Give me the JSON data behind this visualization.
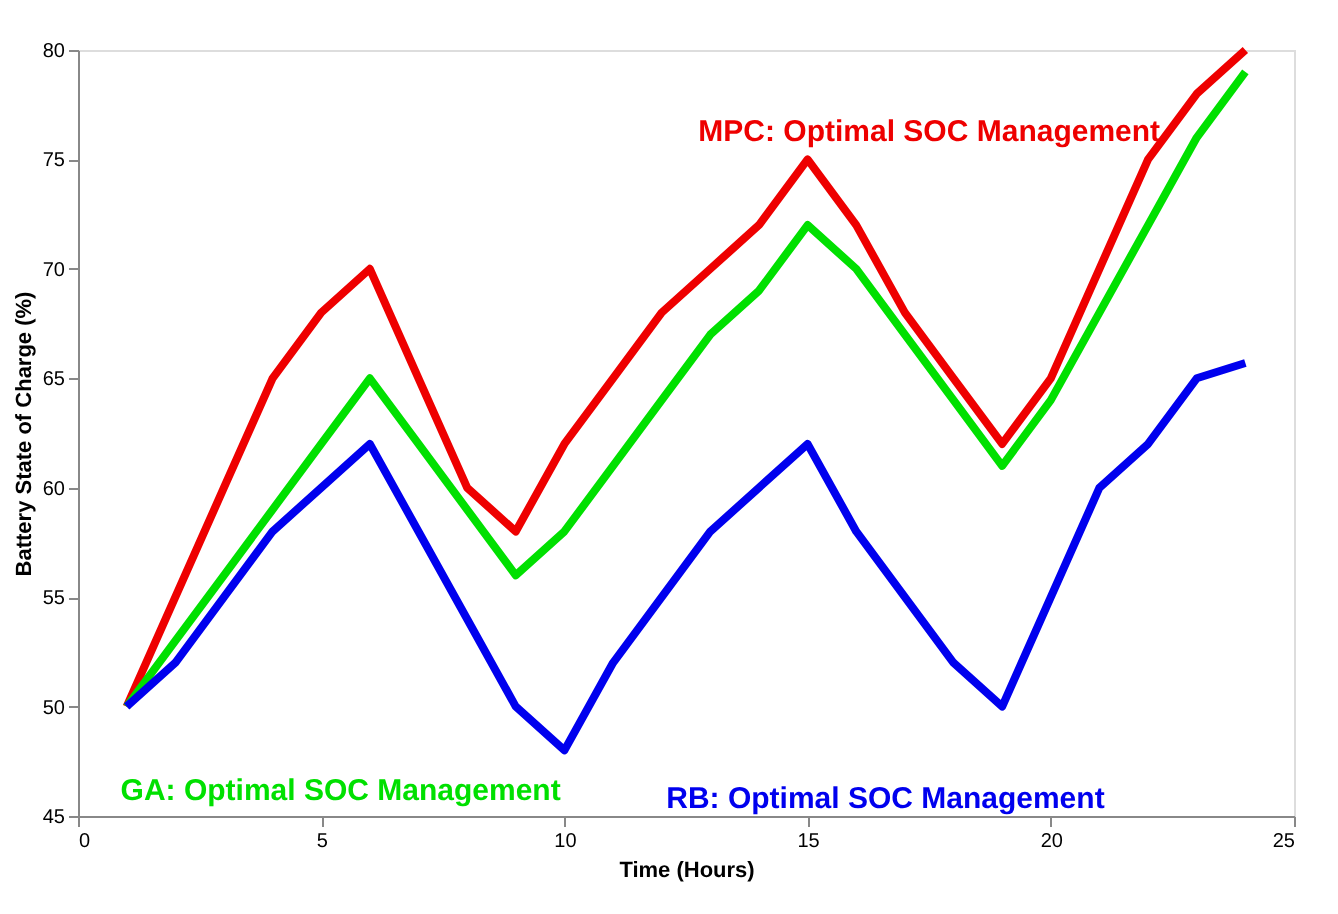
{
  "chart_data": {
    "type": "line",
    "xlabel": "Time (Hours)",
    "ylabel": "Battery State of Charge (%)",
    "xlim": [
      0,
      25
    ],
    "xticks": [
      0,
      5,
      10,
      15,
      20,
      25
    ],
    "ylim": [
      45,
      80
    ],
    "yticks": [
      45,
      50,
      55,
      60,
      65,
      70,
      75,
      80
    ],
    "grid": false,
    "legend": false,
    "marker": "none",
    "line_style": "solid",
    "x": [
      1,
      2,
      3,
      4,
      5,
      6,
      7,
      8,
      9,
      10,
      11,
      12,
      13,
      14,
      15,
      16,
      17,
      18,
      19,
      20,
      21,
      22,
      23,
      24
    ],
    "series": [
      {
        "name": "MPC: Optimal SOC Management",
        "color": "#ee0000",
        "values": [
          50,
          55,
          60,
          65,
          68,
          70,
          65,
          60,
          58,
          62,
          65,
          68,
          70,
          72,
          75,
          72,
          68,
          65,
          62,
          65,
          70,
          75,
          78,
          80
        ]
      },
      {
        "name": "GA: Optimal SOC Management",
        "color": "#00e000",
        "values": [
          50,
          53,
          56,
          59,
          62,
          65,
          62,
          59,
          56,
          58,
          61,
          64,
          67,
          69,
          72,
          70,
          67,
          64,
          61,
          64,
          68,
          72,
          76,
          79
        ]
      },
      {
        "name": "RB: Optimal SOC Management",
        "color": "#0000ee",
        "values": [
          50,
          52,
          55,
          58,
          60,
          62,
          58,
          54,
          50,
          48,
          52,
          55,
          58,
          60,
          62,
          58,
          55,
          52,
          50,
          55,
          60,
          62,
          65,
          65.7
        ]
      }
    ]
  }
}
